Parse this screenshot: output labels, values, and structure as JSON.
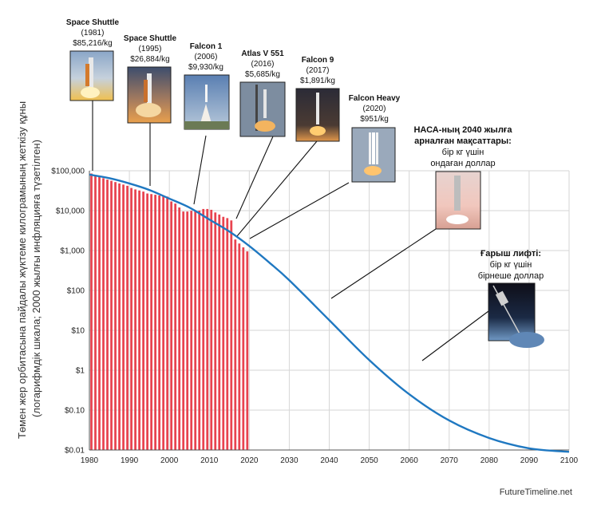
{
  "chart_data": {
    "type": "bar",
    "x_axis": {
      "ticks": [
        "1980",
        "1990",
        "2000",
        "2010",
        "2020",
        "2030",
        "2040",
        "2050",
        "2060",
        "2070",
        "2080",
        "2090",
        "2100"
      ],
      "range": [
        1980,
        2100
      ]
    },
    "y_axis": {
      "scale": "log",
      "ticks": [
        "$0.01",
        "$0.10",
        "$1",
        "$10",
        "$100",
        "$1,000",
        "$10,000",
        "$100,000"
      ],
      "tick_values": [
        0.01,
        0.1,
        1,
        10,
        100,
        1000,
        10000,
        100000
      ],
      "range": [
        0.01,
        100000
      ],
      "label_line1": "Төмен жер орбитасына пайдалы жүктеме килограмының жеткізу құны",
      "label_line2": "(логарифмдік шкала; 2000 жылғы инфляцияға түзетілген)"
    },
    "bars": {
      "color": "#e8434f",
      "x": [
        1981,
        1982,
        1983,
        1984,
        1985,
        1986,
        1987,
        1988,
        1989,
        1990,
        1991,
        1992,
        1993,
        1994,
        1995,
        1996,
        1997,
        1998,
        1999,
        2000,
        2001,
        2002,
        2003,
        2004,
        2005,
        2006,
        2007,
        2008,
        2009,
        2010,
        2011,
        2012,
        2013,
        2014,
        2015,
        2016,
        2017,
        2018,
        2019,
        2020
      ],
      "values": [
        85216,
        78000,
        72000,
        65000,
        60000,
        56000,
        52000,
        48000,
        45000,
        42000,
        37000,
        34000,
        32000,
        30000,
        26884,
        26000,
        25000,
        24000,
        23000,
        22500,
        17000,
        15000,
        12000,
        9500,
        9500,
        9930,
        10000,
        10000,
        11000,
        11000,
        10500,
        9000,
        8000,
        7000,
        6500,
        5685,
        1891,
        1500,
        1200,
        951
      ]
    },
    "trend": {
      "color": "#1f78c1",
      "x": [
        1980,
        1985,
        1990,
        1995,
        2000,
        2005,
        2010,
        2015,
        2020,
        2025,
        2030,
        2040,
        2050,
        2060,
        2070,
        2080,
        2090,
        2100
      ],
      "values": [
        80000,
        65000,
        48000,
        33000,
        20000,
        12000,
        6000,
        3000,
        1300,
        500,
        180,
        18,
        1.8,
        0.25,
        0.055,
        0.02,
        0.011,
        0.009
      ]
    },
    "annotations": [
      {
        "name": "Space Shuttle",
        "lines": [
          "(1981)",
          "$85,216/kg"
        ]
      },
      {
        "name": "Space Shuttle",
        "lines": [
          "(1995)",
          "$26,884/kg"
        ]
      },
      {
        "name": "Falcon 1",
        "lines": [
          "(2006)",
          "$9,930/kg"
        ]
      },
      {
        "name": "Atlas V 551",
        "lines": [
          "(2016)",
          "$5,685/kg"
        ]
      },
      {
        "name": "Falcon 9",
        "lines": [
          "(2017)",
          "$1,891/kg"
        ]
      },
      {
        "name": "Falcon Heavy",
        "lines": [
          "(2020)",
          "$951/kg"
        ]
      },
      {
        "name": "НАСА-ның 2040 жылға арналған мақсаттары:",
        "lines": [
          "бір кг үшін",
          "ондаған доллар"
        ]
      },
      {
        "name": "Ғарыш лифті:",
        "lines": [
          "бір кг үшін",
          "бірнеше доллар"
        ]
      }
    ],
    "source": "FutureTimeline.net",
    "grid": true
  }
}
